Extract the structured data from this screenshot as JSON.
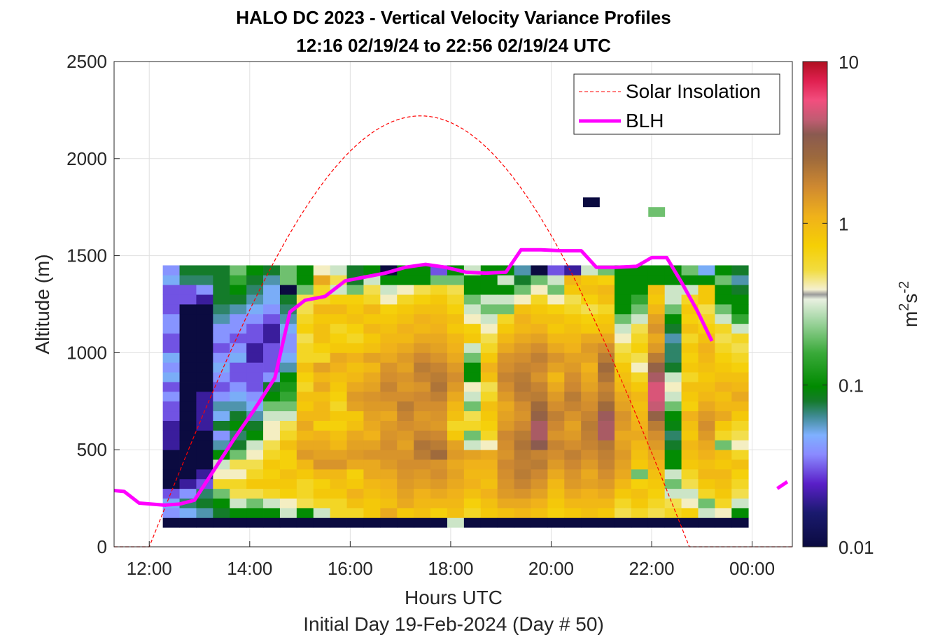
{
  "chart_data": {
    "type": "heatmap",
    "title": "HALO DC 2023 - Vertical Velocity Variance Profiles",
    "subtitle": "12:16 02/19/24 to 22:56 02/19/24  UTC",
    "xlabel": "Hours UTC",
    "xlabel2": "Initial Day 19-Feb-2024 (Day # 50)",
    "ylabel": "Altitude (m)",
    "xlim": [
      11.3,
      24.8
    ],
    "ylim": [
      0,
      2500
    ],
    "x_ticks": [
      12,
      14,
      16,
      18,
      20,
      22,
      24
    ],
    "x_tick_labels": [
      "12:00",
      "14:00",
      "16:00",
      "18:00",
      "20:00",
      "22:00",
      "00:00"
    ],
    "y_ticks": [
      0,
      500,
      1000,
      1500,
      2000,
      2500
    ],
    "y_tick_labels": [
      "0",
      "500",
      "1000",
      "1500",
      "2000",
      "2500"
    ],
    "grid": true,
    "colorbar": {
      "scale": "log",
      "range": [
        0.01,
        10
      ],
      "ticks": [
        0.01,
        0.1,
        1,
        10
      ],
      "tick_labels": [
        "0.01",
        "0.1",
        "1",
        "10"
      ],
      "label_base": "m",
      "label_exp1": "2",
      "label_mid": "s",
      "label_exp2": "-2"
    },
    "legend": {
      "placement": "top-right",
      "entries": [
        {
          "label": "Solar Insolation",
          "color": "#ff0000",
          "style": "dashed"
        },
        {
          "label": "BLH",
          "color": "#ff00ff",
          "style": "solid"
        }
      ]
    },
    "heatmap": {
      "x_start": 12.27,
      "x_step": 0.333,
      "y_start": 100,
      "y_step": 50,
      "note": "variance in m2 s-2 per time column, rows from 100 m upward",
      "columns": [
        [
          0.01,
          0.04,
          0.05,
          0.03,
          0.01,
          0.01,
          0.01,
          0.01,
          0.02,
          0.02,
          0.02,
          0.03,
          0.03,
          0.04,
          0.03,
          0.05,
          0.04,
          0.05,
          0.03,
          0.03,
          0.04,
          0.04,
          0.03,
          0.03,
          0.03,
          0.05,
          0.04
        ],
        [
          0.01,
          0.05,
          0.07,
          0.04,
          0.02,
          0.01,
          0.01,
          0.01,
          0.01,
          0.01,
          0.01,
          0.01,
          0.01,
          0.01,
          0.01,
          0.01,
          0.01,
          0.01,
          0.01,
          0.01,
          0.01,
          0.01,
          0.01,
          0.03,
          0.03,
          0.07,
          0.08
        ],
        [
          0.01,
          0.06,
          0.08,
          0.07,
          0.03,
          0.02,
          0.01,
          0.01,
          0.01,
          0.01,
          0.02,
          0.02,
          0.02,
          0.02,
          0.01,
          0.01,
          0.01,
          0.01,
          0.01,
          0.01,
          0.01,
          0.01,
          0.01,
          0.02,
          0.04,
          0.07,
          0.08
        ],
        [
          0.01,
          0.08,
          0.1,
          0.2,
          0.6,
          0.4,
          0.3,
          0.1,
          0.06,
          0.04,
          0.08,
          0.05,
          0.06,
          0.04,
          0.03,
          0.04,
          0.05,
          0.04,
          0.03,
          0.04,
          0.04,
          0.06,
          0.07,
          0.08,
          0.08,
          0.08,
          0.08
        ],
        [
          0.01,
          0.1,
          0.3,
          0.5,
          0.6,
          0.4,
          0.5,
          0.2,
          0.08,
          0.07,
          0.1,
          0.08,
          0.06,
          0.05,
          0.04,
          0.03,
          0.03,
          0.05,
          0.04,
          0.03,
          0.04,
          0.04,
          0.06,
          0.08,
          0.1,
          0.15,
          0.2
        ],
        [
          0.01,
          0.1,
          0.2,
          0.5,
          0.8,
          0.6,
          0.5,
          0.4,
          0.3,
          0.1,
          0.08,
          0.06,
          0.05,
          0.04,
          0.03,
          0.03,
          0.03,
          0.02,
          0.02,
          0.03,
          0.03,
          0.04,
          0.05,
          0.06,
          0.07,
          0.08,
          0.1
        ],
        [
          0.01,
          0.1,
          0.3,
          0.6,
          0.8,
          0.7,
          0.8,
          0.6,
          0.5,
          0.4,
          0.4,
          0.3,
          0.2,
          0.1,
          0.08,
          0.04,
          0.03,
          0.03,
          0.03,
          0.02,
          0.02,
          0.03,
          0.04,
          0.05,
          0.05,
          0.06,
          0.08
        ],
        [
          0.01,
          0.3,
          0.4,
          0.7,
          0.8,
          0.9,
          0.7,
          0.7,
          0.9,
          0.6,
          0.5,
          0.3,
          0.2,
          0.15,
          0.12,
          0.1,
          0.06,
          0.05,
          0.04,
          0.04,
          0.05,
          0.06,
          0.07,
          0.08,
          0.01,
          0.2,
          0.2
        ],
        [
          0.01,
          0.1,
          0.5,
          0.6,
          0.6,
          0.8,
          1.0,
          1.4,
          1.2,
          1.0,
          1.2,
          1.0,
          0.8,
          0.9,
          0.6,
          0.7,
          0.9,
          0.6,
          0.6,
          0.5,
          0.7,
          0.6,
          0.5,
          0.5,
          0.2,
          0.1,
          0.1
        ],
        [
          0.01,
          0.3,
          0.6,
          0.8,
          0.7,
          1.0,
          1.5,
          1.3,
          1.2,
          1.1,
          0.7,
          1.0,
          1.0,
          0.9,
          1.2,
          1.0,
          1.3,
          0.6,
          0.7,
          0.9,
          0.9,
          0.8,
          1.0,
          0.6,
          0.6,
          1.2,
          0.4
        ],
        [
          0.01,
          0.6,
          0.6,
          0.8,
          0.9,
          1.0,
          1.5,
          1.3,
          1.0,
          0.9,
          0.7,
          0.8,
          0.6,
          0.7,
          0.8,
          0.9,
          1.1,
          1.2,
          0.8,
          0.7,
          0.6,
          0.8,
          1.0,
          0.7,
          0.3,
          0.5,
          0.3
        ],
        [
          0.01,
          0.6,
          0.9,
          1.1,
          0.8,
          0.7,
          1.2,
          1.4,
          1.3,
          1.2,
          0.9,
          0.8,
          1.3,
          1.4,
          1.2,
          1.0,
          0.9,
          1.1,
          0.8,
          0.6,
          0.7,
          0.9,
          0.8,
          0.7,
          0.2,
          0.08,
          0.08
        ],
        [
          0.01,
          0.8,
          0.8,
          0.9,
          1.0,
          1.2,
          1.2,
          1.5,
          1.3,
          1.1,
          1.2,
          1.3,
          1.4,
          1.5,
          1.3,
          1.2,
          1.0,
          1.3,
          0.9,
          0.8,
          1.0,
          0.8,
          1.0,
          0.6,
          0.5,
          0.3,
          0.1
        ],
        [
          0.01,
          1.2,
          0.9,
          1.0,
          1.1,
          1.2,
          1.4,
          1.5,
          1.6,
          1.5,
          1.4,
          1.2,
          1.4,
          1.6,
          1.8,
          1.6,
          1.5,
          1.2,
          1.1,
          1.0,
          0.9,
          0.8,
          0.7,
          0.4,
          0.3,
          0.1,
          0.01
        ],
        [
          0.01,
          0.8,
          1.2,
          1.3,
          1.4,
          1.5,
          1.6,
          1.5,
          1.3,
          1.4,
          1.6,
          1.8,
          2.0,
          1.6,
          1.4,
          1.5,
          1.3,
          1.4,
          1.2,
          1.0,
          1.1,
          0.9,
          0.8,
          0.6,
          0.4,
          0.1,
          0.1
        ],
        [
          0.01,
          0.9,
          1.0,
          1.1,
          1.3,
          1.4,
          1.6,
          2.0,
          2.2,
          1.8,
          1.5,
          1.4,
          1.6,
          1.7,
          1.5,
          1.8,
          2.0,
          1.7,
          1.4,
          1.2,
          1.0,
          1.1,
          0.9,
          0.7,
          0.5,
          0.1,
          0.1
        ],
        [
          0.01,
          0.7,
          1.0,
          1.2,
          1.4,
          1.6,
          1.5,
          2.5,
          2.0,
          1.7,
          1.4,
          1.5,
          1.6,
          1.9,
          2.2,
          2.0,
          1.8,
          1.5,
          1.3,
          1.2,
          1.1,
          1.0,
          0.9,
          0.8,
          0.6,
          0.2,
          0.03
        ],
        [
          0.3,
          0.9,
          1.0,
          1.1,
          1.2,
          1.3,
          1.2,
          1.4,
          1.3,
          0.8,
          0.6,
          0.9,
          1.0,
          1.2,
          1.4,
          1.6,
          1.4,
          1.2,
          1.1,
          1.0,
          0.8,
          0.9,
          0.7,
          0.6,
          0.5,
          0.2,
          0.1
        ],
        [
          0.01,
          0.6,
          0.7,
          0.9,
          1.1,
          1.0,
          1.1,
          1.3,
          0.3,
          0.2,
          0.6,
          0.5,
          0.2,
          0.3,
          0.4,
          0.1,
          0.1,
          0.2,
          0.3,
          0.8,
          0.7,
          0.4,
          0.3,
          0.2,
          0.1,
          0.1,
          0.3
        ],
        [
          0.01,
          0.8,
          0.9,
          1.1,
          0.9,
          1.0,
          1.1,
          1.2,
          0.4,
          0.6,
          0.7,
          0.8,
          0.9,
          0.6,
          0.5,
          0.9,
          1.1,
          0.8,
          0.6,
          0.5,
          0.4,
          0.3,
          0.2,
          0.3,
          0.1,
          0.1,
          0.1
        ],
        [
          0.01,
          0.9,
          1.2,
          1.4,
          1.5,
          1.6,
          1.7,
          1.5,
          1.6,
          1.7,
          1.4,
          1.3,
          1.2,
          1.4,
          1.6,
          1.8,
          1.6,
          1.5,
          1.2,
          1.0,
          0.8,
          0.6,
          0.2,
          0.3,
          0.1,
          0.3,
          0.1
        ],
        [
          0.01,
          1.0,
          1.2,
          1.5,
          1.8,
          2.0,
          1.9,
          2.0,
          2.2,
          2.0,
          1.7,
          1.5,
          1.6,
          1.9,
          2.1,
          2.0,
          1.8,
          1.6,
          1.4,
          1.2,
          1.0,
          1.1,
          0.9,
          0.4,
          0.2,
          0.08,
          0.06
        ],
        [
          0.01,
          0.9,
          1.1,
          1.3,
          1.5,
          1.7,
          2.0,
          1.8,
          3.5,
          4.0,
          4.0,
          3.0,
          2.5,
          2.0,
          1.8,
          1.5,
          1.7,
          1.9,
          1.6,
          1.3,
          1.1,
          0.9,
          0.8,
          0.6,
          0.4,
          0.2,
          0.01
        ],
        [
          0.01,
          0.7,
          0.8,
          0.9,
          1.0,
          1.2,
          1.4,
          1.6,
          1.8,
          1.5,
          1.7,
          1.9,
          1.6,
          1.4,
          1.2,
          1.0,
          1.3,
          1.5,
          1.2,
          1.0,
          0.8,
          0.9,
          0.7,
          0.4,
          0.2,
          0.3,
          0.03
        ],
        [
          0.01,
          0.8,
          1.0,
          1.2,
          1.4,
          1.5,
          1.7,
          1.9,
          1.6,
          1.4,
          1.3,
          1.5,
          1.8,
          2.0,
          1.7,
          1.6,
          1.4,
          1.3,
          1.1,
          1.0,
          0.9,
          0.8,
          0.6,
          0.5,
          0.8,
          1.0,
          0.02
        ],
        [
          0.01,
          0.9,
          1.0,
          1.1,
          1.3,
          1.2,
          1.4,
          1.6,
          1.8,
          1.9,
          2.0,
          1.8,
          1.6,
          1.5,
          1.3,
          1.2,
          1.1,
          1.3,
          1.4,
          1.2,
          0.8,
          0.7,
          0.5,
          0.7,
          0.9,
          0.8,
          0.3
        ],
        [
          0.01,
          0.8,
          1.0,
          1.2,
          1.4,
          1.6,
          1.8,
          1.9,
          2.1,
          4.0,
          4.0,
          3.8,
          2.5,
          2.0,
          1.8,
          2.2,
          2.5,
          2.0,
          1.6,
          1.2,
          0.9,
          0.8,
          0.6,
          0.9,
          1.0,
          0.7,
          0.2
        ],
        [
          0.01,
          0.5,
          0.6,
          0.8,
          1.0,
          1.2,
          1.3,
          1.4,
          1.3,
          1.2,
          1.4,
          1.5,
          1.3,
          1.2,
          1.0,
          0.9,
          0.8,
          0.6,
          0.5,
          0.4,
          0.3,
          0.2,
          0.1,
          0.1,
          0.1,
          0.1,
          0.1
        ],
        [
          0.01,
          0.6,
          0.8,
          0.9,
          0.7,
          0.2,
          0.8,
          0.9,
          1.0,
          1.2,
          1.1,
          1.0,
          0.9,
          1.0,
          0.8,
          0.6,
          0.4,
          0.5,
          0.7,
          0.6,
          0.5,
          0.3,
          0.2,
          0.15,
          0.1,
          0.1,
          0.1
        ],
        [
          0.01,
          0.5,
          0.6,
          0.7,
          0.8,
          0.9,
          1.1,
          1.2,
          1.4,
          1.6,
          2.0,
          3.0,
          4.5,
          5.0,
          5.0,
          4.0,
          3.0,
          2.0,
          1.4,
          1.2,
          1.5,
          1.3,
          1.0,
          0.8,
          0.9,
          0.1,
          0.1
        ],
        [
          0.01,
          0.6,
          0.5,
          0.3,
          0.2,
          0.3,
          0.1,
          0.1,
          0.08,
          0.07,
          0.09,
          0.1,
          0.2,
          0.3,
          0.4,
          0.3,
          0.08,
          0.07,
          0.07,
          0.06,
          0.08,
          0.1,
          0.2,
          0.3,
          0.3,
          0.1,
          0.1
        ],
        [
          0.01,
          0.7,
          0.4,
          0.3,
          0.5,
          0.6,
          0.8,
          0.9,
          1.0,
          0.8,
          0.9,
          1.1,
          0.7,
          0.8,
          0.9,
          0.6,
          0.8,
          0.7,
          0.8,
          0.6,
          0.9,
          0.7,
          0.8,
          0.6,
          0.3,
          0.1,
          0.2
        ],
        [
          0.01,
          0.3,
          0.2,
          0.6,
          0.8,
          1.0,
          0.9,
          1.1,
          1.2,
          1.4,
          1.6,
          1.4,
          1.2,
          1.0,
          0.9,
          0.8,
          0.9,
          1.0,
          1.1,
          0.9,
          0.7,
          0.6,
          0.5,
          0.8,
          0.8,
          0.1,
          0.05
        ],
        [
          0.01,
          0.4,
          0.6,
          0.8,
          0.9,
          1.0,
          0.8,
          0.9,
          0.2,
          0.6,
          0.8,
          1.2,
          1.0,
          0.9,
          1.1,
          0.9,
          0.8,
          0.7,
          0.6,
          0.5,
          0.6,
          0.3,
          0.2,
          0.1,
          0.1,
          0.2,
          0.1
        ],
        [
          0.01,
          0.1,
          0.3,
          0.5,
          0.6,
          0.7,
          0.9,
          0.6,
          0.4,
          0.5,
          0.6,
          0.8,
          1.0,
          1.2,
          1.0,
          0.9,
          0.7,
          0.6,
          0.5,
          0.6,
          0.3,
          0.15,
          0.1,
          0.1,
          0.08,
          0.06,
          0.08
        ]
      ],
      "isolated_cells": [
        {
          "x": 20.8,
          "y": 1750,
          "value": 0.01
        },
        {
          "x": 22.1,
          "y": 1700,
          "value": 0.2
        }
      ]
    },
    "series": [
      {
        "name": "BLH",
        "x": [
          11.3,
          11.5,
          11.8,
          12.3,
          12.6,
          12.9,
          13.3,
          13.7,
          14.1,
          14.5,
          14.8,
          15.1,
          15.5,
          15.9,
          16.3,
          16.7,
          17.1,
          17.5,
          17.9,
          18.3,
          18.7,
          19.1,
          19.4,
          19.8,
          20.2,
          20.6,
          20.9,
          21.3,
          21.7,
          22.0,
          22.3,
          22.6,
          22.9,
          23.2
        ],
        "y": [
          290,
          285,
          225,
          215,
          220,
          240,
          400,
          560,
          710,
          870,
          1210,
          1270,
          1290,
          1370,
          1390,
          1410,
          1440,
          1455,
          1440,
          1415,
          1410,
          1415,
          1530,
          1530,
          1525,
          1525,
          1440,
          1440,
          1445,
          1490,
          1490,
          1360,
          1220,
          1060
        ]
      },
      {
        "name": "BLH-next",
        "x": [
          24.5,
          24.7
        ],
        "y": [
          300,
          335
        ]
      },
      {
        "name": "Solar Insolation",
        "rise": 12.0,
        "set": 22.75,
        "peak_time": 17.4,
        "peak_altitude": 2220
      }
    ]
  }
}
